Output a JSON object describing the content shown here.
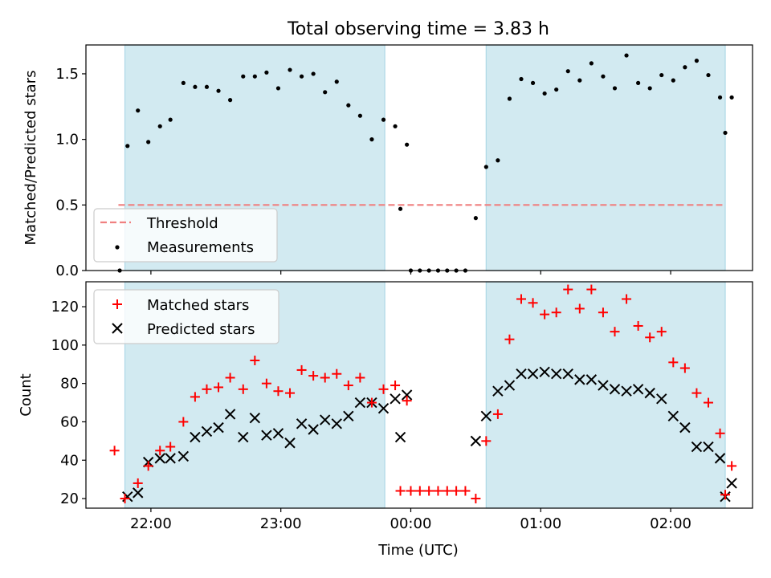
{
  "chart_data": [
    {
      "type": "scatter",
      "title": "Total observing time = 3.83 h",
      "xlabel": "",
      "ylabel": "Matched/Predicted stars",
      "x_unit": "hours (UTC, continuous across midnight)",
      "xlim": [
        21.5,
        26.63
      ],
      "ylim": [
        0.0,
        1.72
      ],
      "x_ticks": [
        22,
        23,
        24,
        25,
        26
      ],
      "y_ticks": [
        0.0,
        0.5,
        1.0,
        1.5
      ],
      "y_tick_labels": [
        "0.0",
        "0.5",
        "1.0",
        "1.5"
      ],
      "shaded_intervals": [
        [
          21.8,
          23.8
        ],
        [
          24.58,
          26.42
        ]
      ],
      "shade_color": "#add8e6",
      "threshold": {
        "name": "Threshold",
        "value": 0.5,
        "x_range": [
          21.75,
          26.42
        ],
        "color": "#f08080"
      },
      "series": [
        {
          "name": "Measurements",
          "marker": "dot",
          "color": "#000000",
          "points": [
            [
              21.76,
              0.0
            ],
            [
              21.82,
              0.95
            ],
            [
              21.9,
              1.22
            ],
            [
              21.98,
              0.98
            ],
            [
              22.07,
              1.1
            ],
            [
              22.15,
              1.15
            ],
            [
              22.25,
              1.43
            ],
            [
              22.34,
              1.4
            ],
            [
              22.43,
              1.4
            ],
            [
              22.52,
              1.37
            ],
            [
              22.61,
              1.3
            ],
            [
              22.71,
              1.48
            ],
            [
              22.8,
              1.48
            ],
            [
              22.89,
              1.51
            ],
            [
              22.98,
              1.39
            ],
            [
              23.07,
              1.53
            ],
            [
              23.16,
              1.48
            ],
            [
              23.25,
              1.5
            ],
            [
              23.34,
              1.36
            ],
            [
              23.43,
              1.44
            ],
            [
              23.52,
              1.26
            ],
            [
              23.61,
              1.18
            ],
            [
              23.7,
              1.0
            ],
            [
              23.79,
              1.15
            ],
            [
              23.88,
              1.1
            ],
            [
              23.97,
              0.96
            ],
            [
              23.92,
              0.47
            ],
            [
              24.0,
              0.0
            ],
            [
              24.07,
              0.0
            ],
            [
              24.14,
              0.0
            ],
            [
              24.21,
              0.0
            ],
            [
              24.28,
              0.0
            ],
            [
              24.35,
              0.0
            ],
            [
              24.42,
              0.0
            ],
            [
              24.5,
              0.4
            ],
            [
              24.58,
              0.79
            ],
            [
              24.67,
              0.84
            ],
            [
              24.76,
              1.31
            ],
            [
              24.85,
              1.46
            ],
            [
              24.94,
              1.43
            ],
            [
              25.03,
              1.35
            ],
            [
              25.12,
              1.38
            ],
            [
              25.21,
              1.52
            ],
            [
              25.3,
              1.45
            ],
            [
              25.39,
              1.58
            ],
            [
              25.48,
              1.48
            ],
            [
              25.57,
              1.39
            ],
            [
              25.66,
              1.64
            ],
            [
              25.75,
              1.43
            ],
            [
              25.84,
              1.39
            ],
            [
              25.93,
              1.49
            ],
            [
              26.02,
              1.45
            ],
            [
              26.11,
              1.55
            ],
            [
              26.2,
              1.6
            ],
            [
              26.29,
              1.49
            ],
            [
              26.38,
              1.32
            ],
            [
              26.47,
              1.32
            ],
            [
              26.42,
              1.05
            ]
          ]
        }
      ],
      "legend": {
        "position": "lower-left",
        "entries": [
          "Threshold",
          "Measurements"
        ]
      }
    },
    {
      "type": "scatter",
      "title": "",
      "xlabel": "Time (UTC)",
      "ylabel": "Count",
      "x_unit": "hours (UTC, continuous across midnight)",
      "xlim": [
        21.5,
        26.63
      ],
      "ylim": [
        15,
        133
      ],
      "x_ticks": [
        22,
        23,
        24,
        25,
        26
      ],
      "x_tick_labels": [
        "22:00",
        "23:00",
        "00:00",
        "01:00",
        "02:00"
      ],
      "y_ticks": [
        20,
        40,
        60,
        80,
        100,
        120
      ],
      "y_tick_labels": [
        "20",
        "40",
        "60",
        "80",
        "100",
        "120"
      ],
      "shaded_intervals": [
        [
          21.8,
          23.8
        ],
        [
          24.58,
          26.42
        ]
      ],
      "shade_color": "#add8e6",
      "series": [
        {
          "name": "Matched stars",
          "marker": "plus",
          "color": "#ff0000",
          "points": [
            [
              21.72,
              45
            ],
            [
              21.8,
              20
            ],
            [
              21.9,
              28
            ],
            [
              21.98,
              37
            ],
            [
              22.07,
              45
            ],
            [
              22.15,
              47
            ],
            [
              22.25,
              60
            ],
            [
              22.34,
              73
            ],
            [
              22.43,
              77
            ],
            [
              22.52,
              78
            ],
            [
              22.61,
              83
            ],
            [
              22.71,
              77
            ],
            [
              22.8,
              92
            ],
            [
              22.89,
              80
            ],
            [
              22.98,
              76
            ],
            [
              23.07,
              75
            ],
            [
              23.16,
              87
            ],
            [
              23.25,
              84
            ],
            [
              23.34,
              83
            ],
            [
              23.43,
              85
            ],
            [
              23.52,
              79
            ],
            [
              23.61,
              83
            ],
            [
              23.7,
              70
            ],
            [
              23.79,
              77
            ],
            [
              23.88,
              79
            ],
            [
              23.97,
              71
            ],
            [
              23.92,
              24
            ],
            [
              24.0,
              24
            ],
            [
              24.07,
              24
            ],
            [
              24.14,
              24
            ],
            [
              24.21,
              24
            ],
            [
              24.28,
              24
            ],
            [
              24.35,
              24
            ],
            [
              24.42,
              24
            ],
            [
              24.5,
              20
            ],
            [
              24.58,
              50
            ],
            [
              24.67,
              64
            ],
            [
              24.76,
              103
            ],
            [
              24.85,
              124
            ],
            [
              24.94,
              122
            ],
            [
              25.03,
              116
            ],
            [
              25.12,
              117
            ],
            [
              25.21,
              129
            ],
            [
              25.3,
              119
            ],
            [
              25.39,
              129
            ],
            [
              25.48,
              117
            ],
            [
              25.57,
              107
            ],
            [
              25.66,
              124
            ],
            [
              25.75,
              110
            ],
            [
              25.84,
              104
            ],
            [
              25.93,
              107
            ],
            [
              26.02,
              91
            ],
            [
              26.11,
              88
            ],
            [
              26.2,
              75
            ],
            [
              26.29,
              70
            ],
            [
              26.38,
              54
            ],
            [
              26.47,
              37
            ],
            [
              26.42,
              22
            ]
          ]
        },
        {
          "name": "Predicted stars",
          "marker": "x",
          "color": "#000000",
          "points": [
            [
              21.82,
              21
            ],
            [
              21.9,
              23
            ],
            [
              21.98,
              39
            ],
            [
              22.07,
              41
            ],
            [
              22.15,
              41
            ],
            [
              22.25,
              42
            ],
            [
              22.34,
              52
            ],
            [
              22.43,
              55
            ],
            [
              22.52,
              57
            ],
            [
              22.61,
              64
            ],
            [
              22.71,
              52
            ],
            [
              22.8,
              62
            ],
            [
              22.89,
              53
            ],
            [
              22.98,
              54
            ],
            [
              23.07,
              49
            ],
            [
              23.16,
              59
            ],
            [
              23.25,
              56
            ],
            [
              23.34,
              61
            ],
            [
              23.43,
              59
            ],
            [
              23.52,
              63
            ],
            [
              23.61,
              70
            ],
            [
              23.7,
              70
            ],
            [
              23.79,
              67
            ],
            [
              23.88,
              72
            ],
            [
              23.97,
              74
            ],
            [
              23.92,
              52
            ],
            [
              24.5,
              50
            ],
            [
              24.58,
              63
            ],
            [
              24.67,
              76
            ],
            [
              24.76,
              79
            ],
            [
              24.85,
              85
            ],
            [
              24.94,
              85
            ],
            [
              25.03,
              86
            ],
            [
              25.12,
              85
            ],
            [
              25.21,
              85
            ],
            [
              25.3,
              82
            ],
            [
              25.39,
              82
            ],
            [
              25.48,
              79
            ],
            [
              25.57,
              77
            ],
            [
              25.66,
              76
            ],
            [
              25.75,
              77
            ],
            [
              25.84,
              75
            ],
            [
              25.93,
              72
            ],
            [
              26.02,
              63
            ],
            [
              26.11,
              57
            ],
            [
              26.2,
              47
            ],
            [
              26.29,
              47
            ],
            [
              26.38,
              41
            ],
            [
              26.47,
              28
            ],
            [
              26.42,
              21
            ]
          ]
        }
      ],
      "legend": {
        "position": "upper-left",
        "entries": [
          "Matched stars",
          "Predicted stars"
        ]
      }
    }
  ]
}
